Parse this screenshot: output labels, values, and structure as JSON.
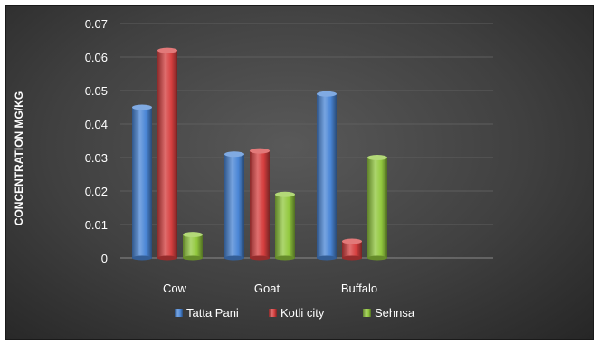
{
  "chart_data": {
    "type": "bar",
    "title": "",
    "xlabel": "",
    "ylabel": "CONCENTRATION MG/KG",
    "categories": [
      "Cow",
      "Goat",
      "Buffalo"
    ],
    "series": [
      {
        "name": "Tatta Pani",
        "values": [
          0.045,
          0.031,
          0.049
        ],
        "color": "#4a86d6"
      },
      {
        "name": "Kotli city",
        "values": [
          0.062,
          0.032,
          0.005
        ],
        "color": "#d63f3f"
      },
      {
        "name": "Sehnsa",
        "values": [
          0.007,
          0.019,
          0.03
        ],
        "color": "#92c83e"
      }
    ],
    "yticks": [
      "0",
      "0.01",
      "0.02",
      "0.03",
      "0.04",
      "0.05",
      "0.06",
      "0.07"
    ],
    "ylim": [
      0,
      0.07
    ],
    "grid": true,
    "legend_position": "bottom",
    "bar_style": "3d-cylinder"
  }
}
